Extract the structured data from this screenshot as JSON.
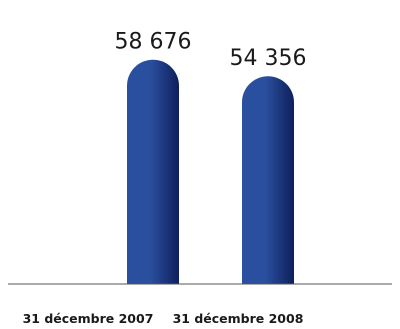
{
  "chart_data": {
    "type": "bar",
    "categories": [
      "31 décembre 2007",
      "31 décembre 2008"
    ],
    "values": [
      58676,
      54356
    ],
    "value_labels": [
      "58 676",
      "54 356"
    ],
    "title": "",
    "xlabel": "",
    "ylabel": "",
    "ylim": [
      0,
      62000
    ],
    "grid": false,
    "legend": "none",
    "colors": {
      "bar_light": "#2a4f9e",
      "bar_dark": "#0f1f5c",
      "axis": "#555555",
      "text": "#1a1a1a"
    }
  }
}
